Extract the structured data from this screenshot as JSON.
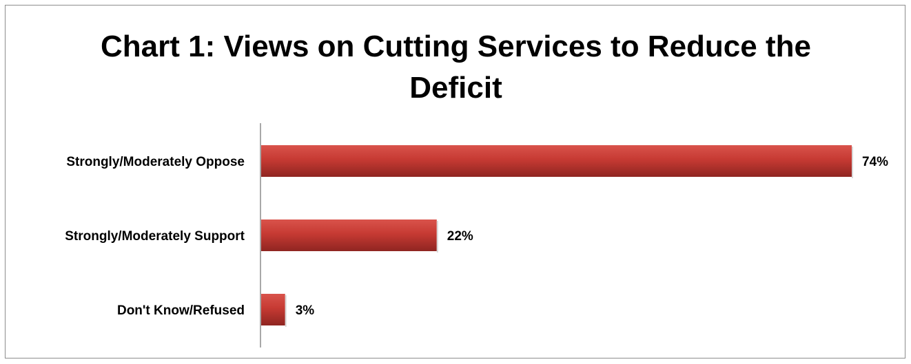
{
  "chart_data": {
    "type": "bar",
    "orientation": "horizontal",
    "title_lines": [
      "Chart 1: Views on Cutting Services to Reduce the",
      "Deficit"
    ],
    "categories": [
      "Strongly/Moderately Oppose",
      "Strongly/Moderately Support",
      "Don't Know/Refused"
    ],
    "values": [
      74,
      22,
      3
    ],
    "value_labels": [
      "74%",
      "22%",
      "3%"
    ],
    "xlim": [
      0,
      74
    ],
    "xlabel": "",
    "ylabel": "",
    "grid": false,
    "legend": "none",
    "bar_color": "#c0392f"
  }
}
